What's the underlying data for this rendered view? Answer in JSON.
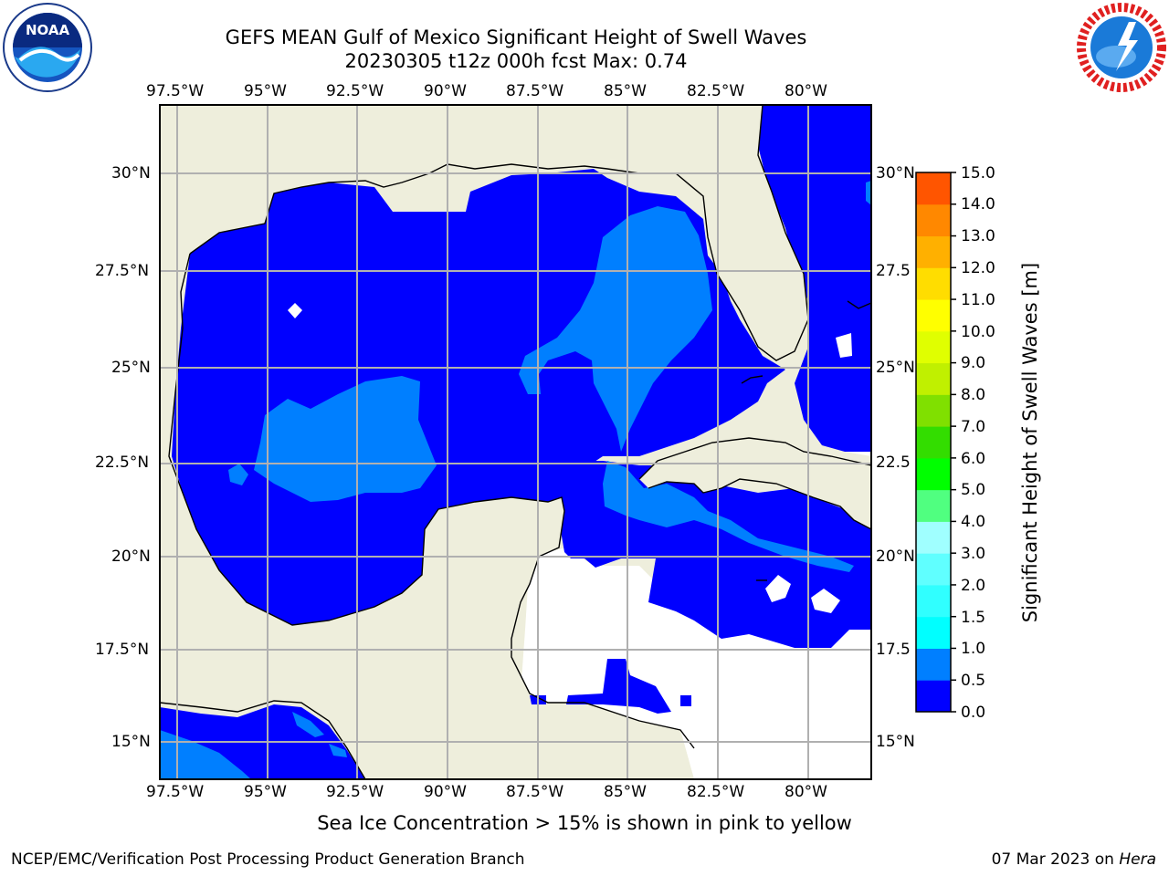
{
  "header": {
    "title_line1": "GEFS MEAN Gulf of Mexico Significant Height of Swell Waves",
    "title_line2": "20230305 t12z 000h fcst   Max: 0.74"
  },
  "map": {
    "lon_labels": [
      "97.5°W",
      "95°W",
      "92.5°W",
      "90°W",
      "87.5°W",
      "85°W",
      "82.5°W",
      "80°W"
    ],
    "lat_labels": [
      "30°N",
      "27.5°N",
      "25°N",
      "22.5°N",
      "20°N",
      "17.5°N",
      "15°N"
    ],
    "lat_labels_right": [
      "30°N",
      "27.5",
      "25°N",
      "22.5",
      "20°N",
      "17.5",
      "15°N"
    ],
    "extent": {
      "lon": [
        -98,
        -78.2
      ],
      "lat": [
        14,
        31.8
      ]
    },
    "colors": {
      "land": "#eeeedc",
      "swell_0_0.5": "#0000ff",
      "swell_0.5_1.0": "#007fff",
      "no_data": "#ffffff"
    }
  },
  "colorbar": {
    "title": "Significant Height of Swell Waves [m]",
    "ticks": [
      "15.0",
      "14.0",
      "13.0",
      "12.0",
      "11.0",
      "10.0",
      "9.0",
      "8.0",
      "7.0",
      "6.0",
      "5.0",
      "4.0",
      "3.0",
      "2.0",
      "1.5",
      "1.0",
      "0.5",
      "0.0"
    ],
    "colors": [
      "#0000ff",
      "#007fff",
      "#00ffff",
      "#30ffff",
      "#60ffff",
      "#a0ffff",
      "#50ff80",
      "#00ff00",
      "#33dd00",
      "#80e000",
      "#c0f000",
      "#e0ff00",
      "#ffff00",
      "#ffdd00",
      "#ffb000",
      "#ff8800",
      "#ff5500",
      "#ff2200",
      "#ff0000"
    ]
  },
  "ice_note": "Sea Ice Concentration > 15% is shown in pink to yellow",
  "footer": {
    "left": "NCEP/EMC/Verification Post Processing Product Generation Branch",
    "right_date": "07 Mar 2023 on ",
    "right_host": "Hera"
  }
}
